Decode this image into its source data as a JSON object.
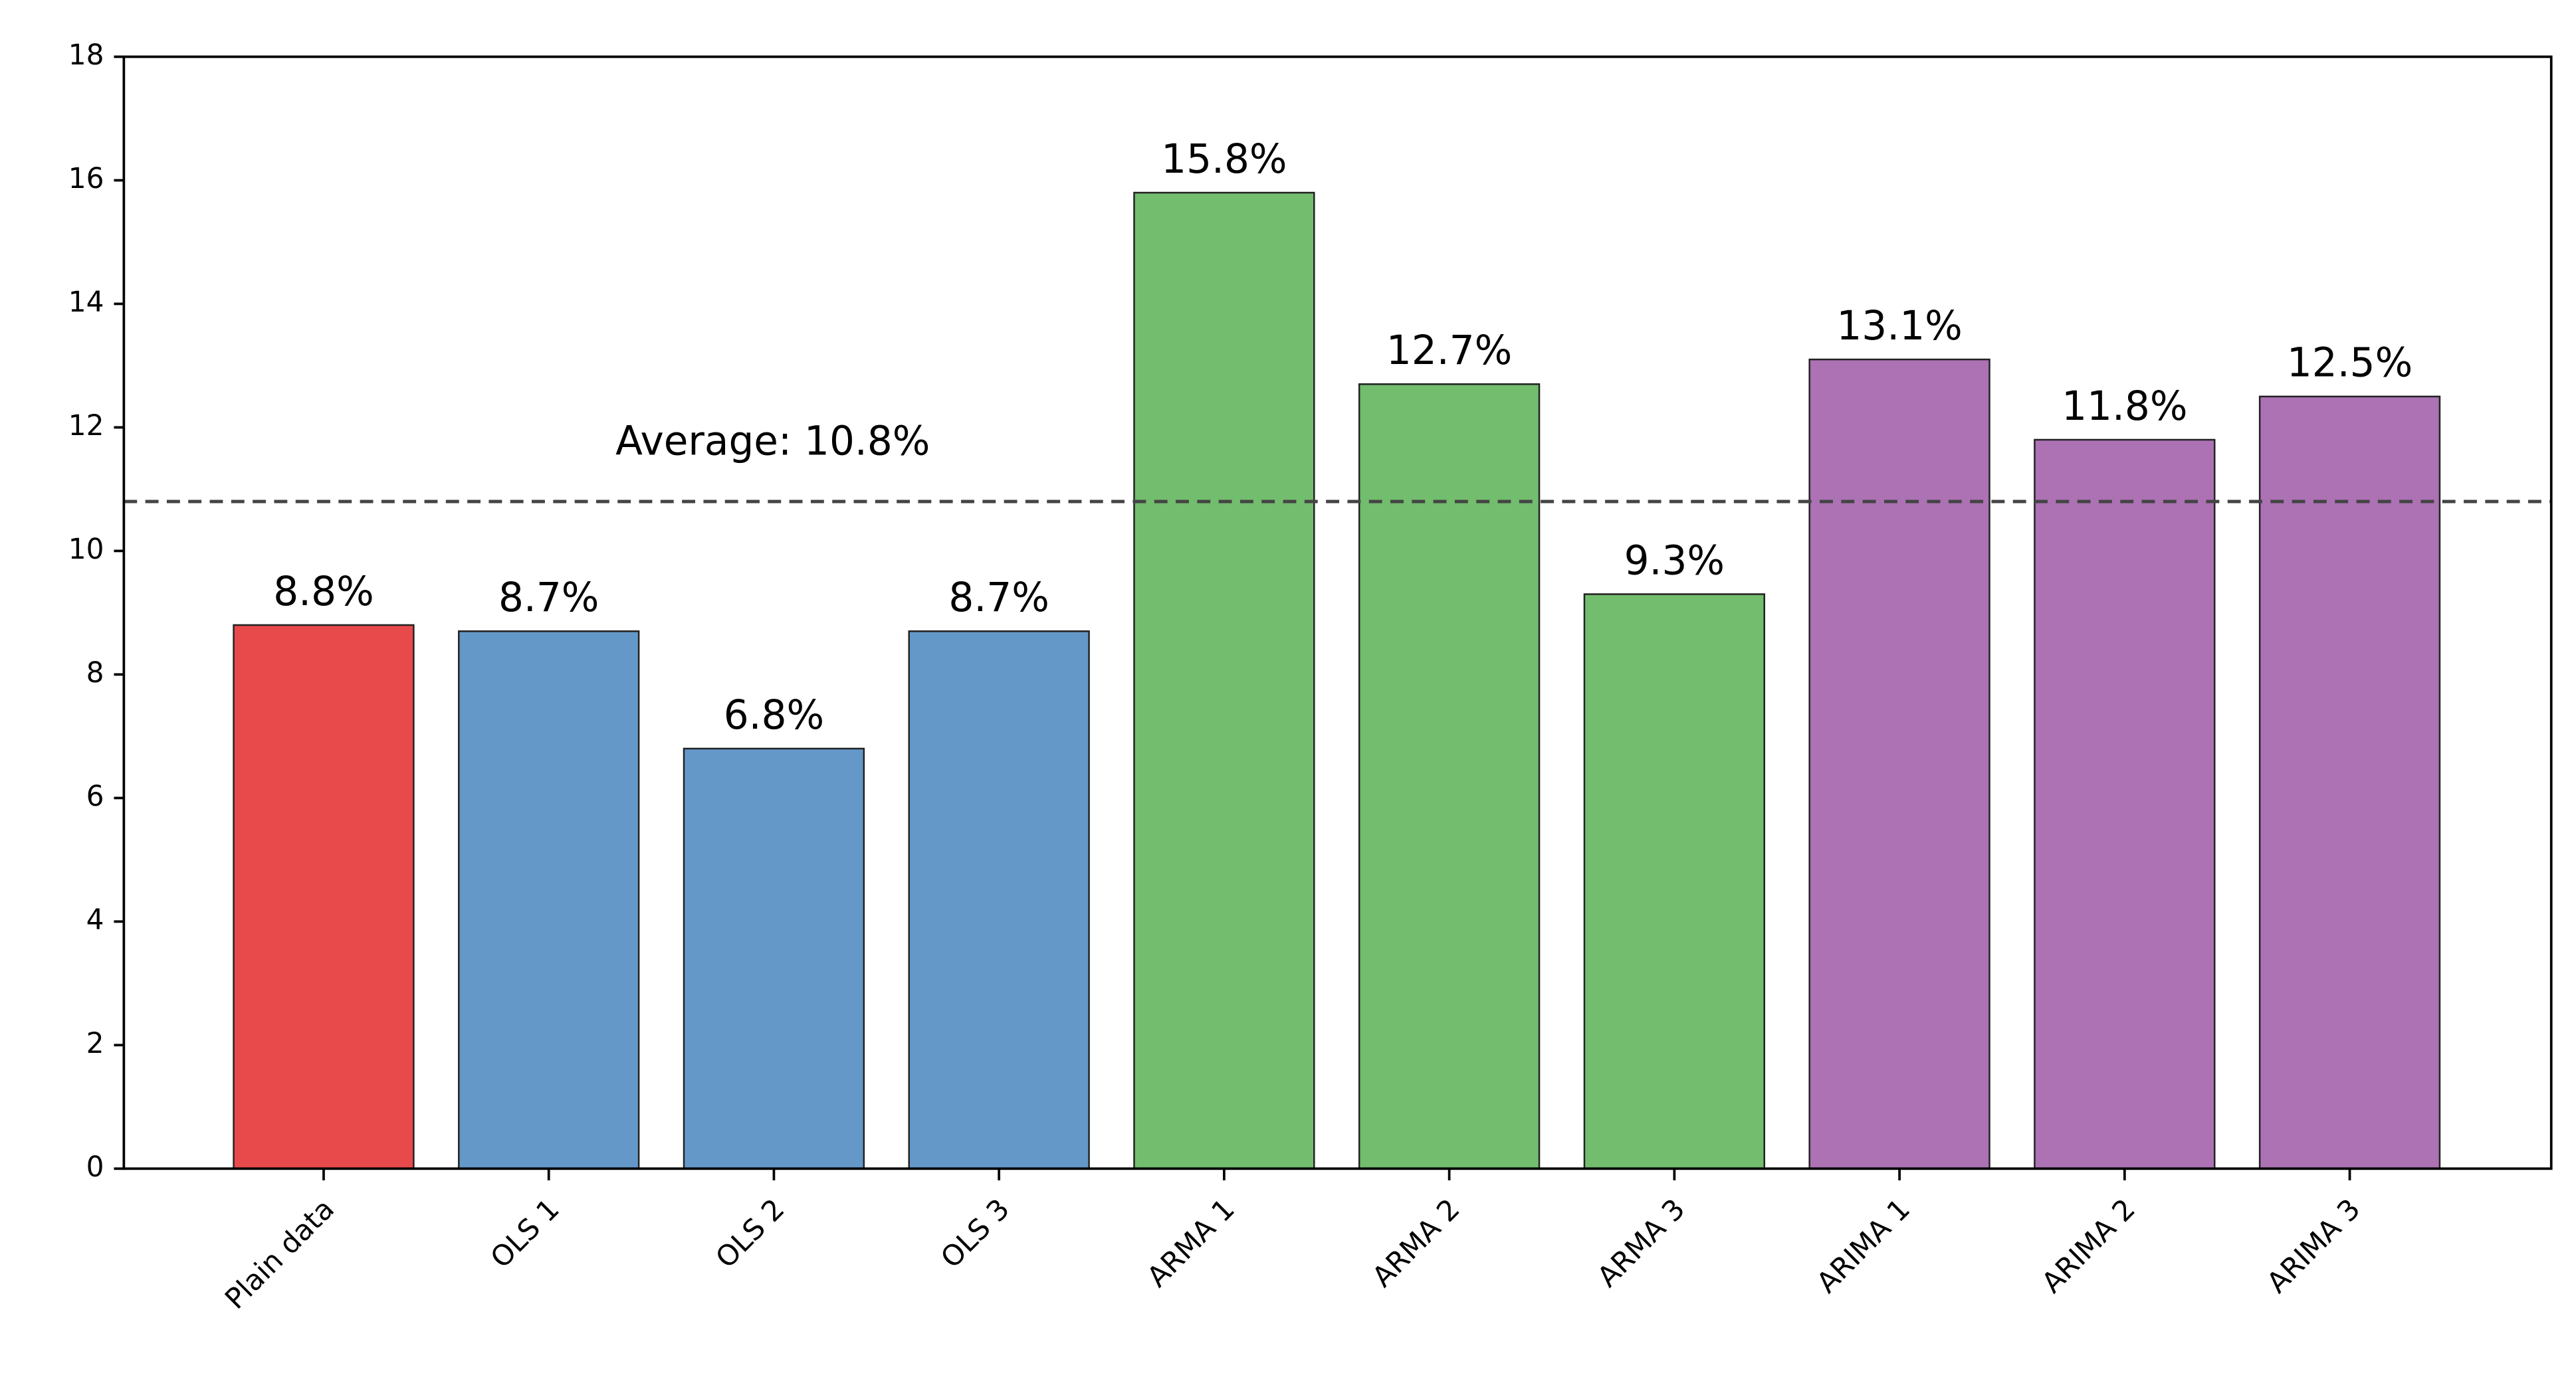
{
  "chart_data": {
    "type": "bar",
    "categories": [
      "Plain data",
      "OLS 1",
      "OLS 2",
      "OLS 3",
      "ARMA 1",
      "ARMA 2",
      "ARMA 3",
      "ARIMA 1",
      "ARIMA 2",
      "ARIMA 3"
    ],
    "values": [
      8.8,
      8.7,
      6.8,
      8.7,
      15.8,
      12.7,
      9.3,
      13.1,
      11.8,
      12.5
    ],
    "value_labels": [
      "8.8%",
      "8.7%",
      "6.8%",
      "8.7%",
      "15.8%",
      "12.7%",
      "9.3%",
      "13.1%",
      "11.8%",
      "12.5%"
    ],
    "colors": [
      "#e8494a",
      "#6398c8",
      "#6398c8",
      "#6398c8",
      "#72bd6e",
      "#72bd6e",
      "#72bd6e",
      "#ac72b4",
      "#ac72b4",
      "#ac72b4"
    ],
    "average": {
      "value": 10.8,
      "label": "Average: 10.8%"
    },
    "ylim": [
      0,
      18
    ],
    "yticks": [
      0,
      2,
      4,
      6,
      8,
      10,
      12,
      14,
      16,
      18
    ],
    "grid": false
  }
}
